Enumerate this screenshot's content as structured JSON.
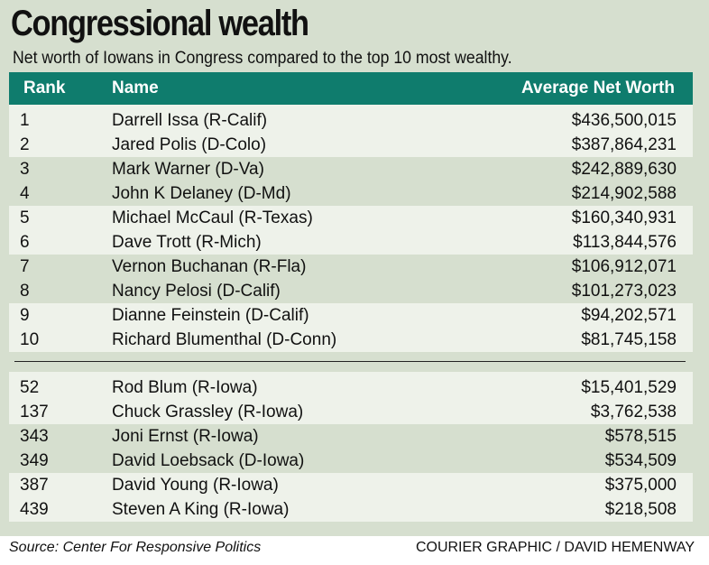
{
  "title": "Congressional wealth",
  "subtitle": "Net worth of Iowans in Congress compared to the top 10 most wealthy.",
  "colors": {
    "header_bg": "#0f7c6d",
    "header_text": "#ffffff",
    "panel_bg": "#d6dfcf",
    "row_light": "#eef2ea"
  },
  "chart_data": {
    "type": "table",
    "columns": [
      "Rank",
      "Name",
      "Average Net Worth"
    ],
    "top_ten": [
      {
        "rank": "1",
        "name": "Darrell Issa (R-Calif)",
        "worth": "$436,500,015"
      },
      {
        "rank": "2",
        "name": "Jared Polis (D-Colo)",
        "worth": "$387,864,231"
      },
      {
        "rank": "3",
        "name": "Mark Warner (D-Va)",
        "worth": "$242,889,630"
      },
      {
        "rank": "4",
        "name": "John K Delaney (D-Md)",
        "worth": "$214,902,588"
      },
      {
        "rank": "5",
        "name": "Michael McCaul (R-Texas)",
        "worth": "$160,340,931"
      },
      {
        "rank": "6",
        "name": "Dave Trott (R-Mich)",
        "worth": "$113,844,576"
      },
      {
        "rank": "7",
        "name": "Vernon Buchanan (R-Fla)",
        "worth": "$106,912,071"
      },
      {
        "rank": "8",
        "name": "Nancy Pelosi (D-Calif)",
        "worth": "$101,273,023"
      },
      {
        "rank": "9",
        "name": "Dianne Feinstein (D-Calif)",
        "worth": "$94,202,571"
      },
      {
        "rank": "10",
        "name": "Richard Blumenthal (D-Conn)",
        "worth": "$81,745,158"
      }
    ],
    "iowans": [
      {
        "rank": "52",
        "name": "Rod Blum (R-Iowa)",
        "worth": "$15,401,529"
      },
      {
        "rank": "137",
        "name": "Chuck Grassley (R-Iowa)",
        "worth": "$3,762,538"
      },
      {
        "rank": "343",
        "name": "Joni Ernst (R-Iowa)",
        "worth": "$578,515"
      },
      {
        "rank": "349",
        "name": "David Loebsack (D-Iowa)",
        "worth": "$534,509"
      },
      {
        "rank": "387",
        "name": "David Young (R-Iowa)",
        "worth": "$375,000"
      },
      {
        "rank": "439",
        "name": "Steven A King (R-Iowa)",
        "worth": "$218,508"
      }
    ]
  },
  "source": "Source: Center For Responsive Politics",
  "credit": "COURIER GRAPHIC / DAVID HEMENWAY"
}
